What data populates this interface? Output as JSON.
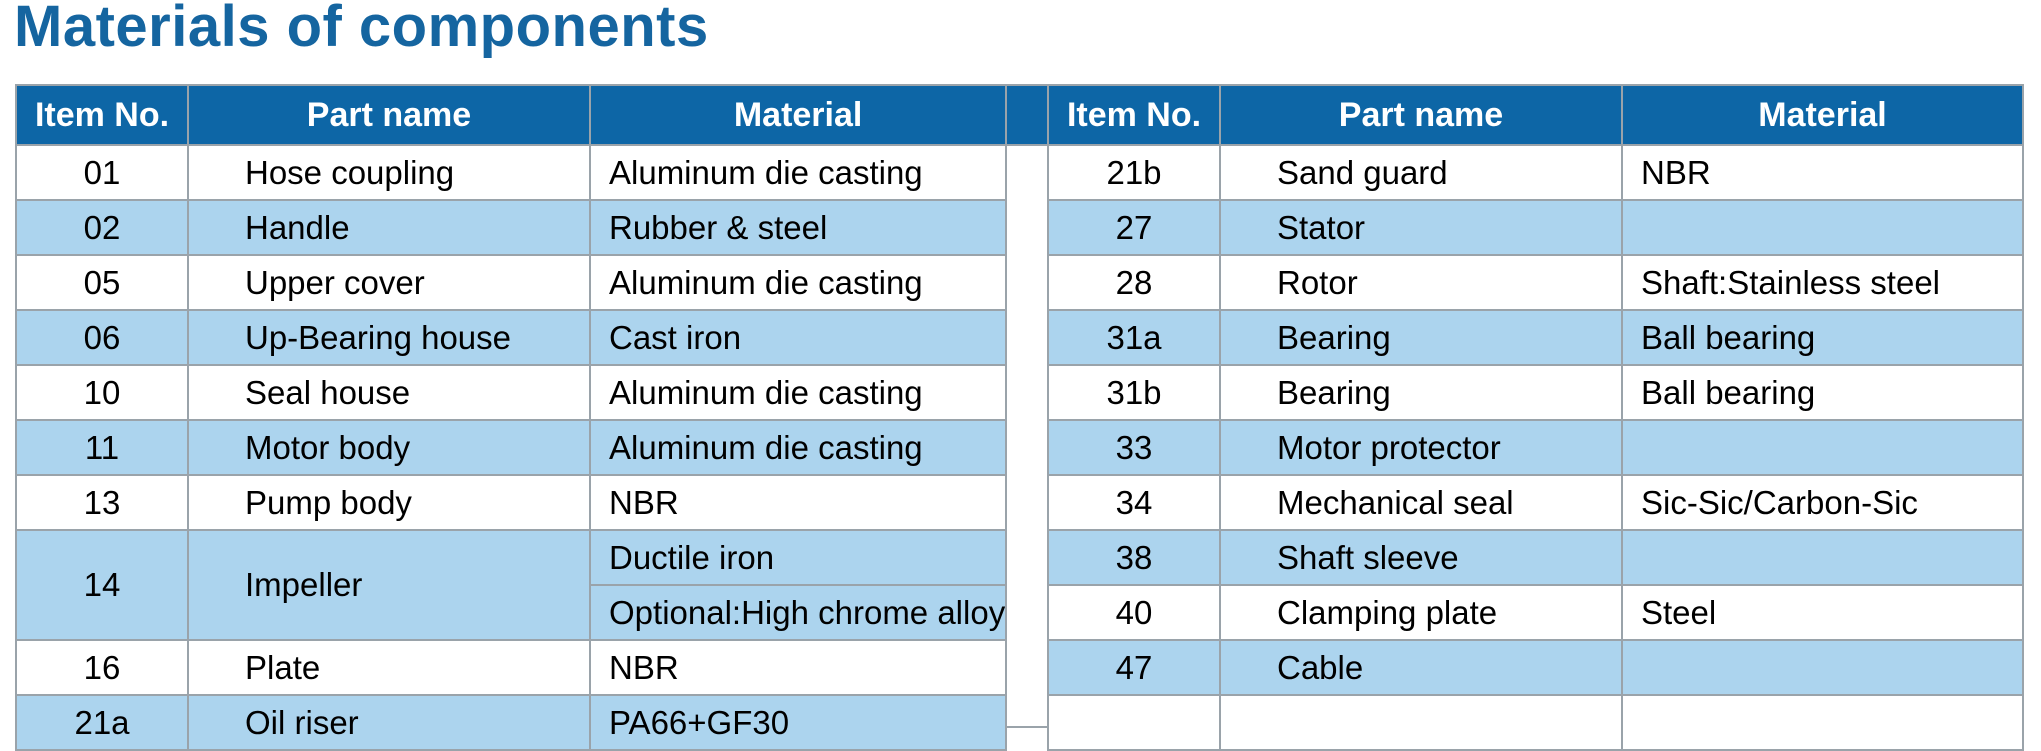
{
  "title": "Materials of components",
  "headers": [
    "Item No.",
    "Part name",
    "Material"
  ],
  "left_rows": [
    {
      "no": "01",
      "name": "Hose coupling",
      "material": "Aluminum die casting"
    },
    {
      "no": "02",
      "name": "Handle",
      "material": "Rubber & steel"
    },
    {
      "no": "05",
      "name": "Upper cover",
      "material": "Aluminum die casting"
    },
    {
      "no": "06",
      "name": "Up-Bearing house",
      "material": "Cast iron"
    },
    {
      "no": "10",
      "name": "Seal house",
      "material": "Aluminum die casting"
    },
    {
      "no": "11",
      "name": "Motor body",
      "material": "Aluminum die casting"
    },
    {
      "no": "13",
      "name": "Pump body",
      "material": "NBR"
    },
    {
      "no": "14",
      "name": "Impeller",
      "material": "Ductile iron",
      "material2": "Optional:High chrome alloy"
    },
    {
      "no": "16",
      "name": "Plate",
      "material": "NBR"
    },
    {
      "no": "21a",
      "name": "Oil riser",
      "material": "PA66+GF30"
    }
  ],
  "right_rows": [
    {
      "no": "21b",
      "name": "Sand guard",
      "material": "NBR"
    },
    {
      "no": "27",
      "name": "Stator",
      "material": ""
    },
    {
      "no": "28",
      "name": "Rotor",
      "material": "Shaft:Stainless steel"
    },
    {
      "no": "31a",
      "name": "Bearing",
      "material": "Ball bearing"
    },
    {
      "no": "31b",
      "name": "Bearing",
      "material": "Ball bearing"
    },
    {
      "no": "33",
      "name": "Motor protector",
      "material": ""
    },
    {
      "no": "34",
      "name": "Mechanical seal",
      "material": "Sic-Sic/Carbon-Sic"
    },
    {
      "no": "38",
      "name": "Shaft sleeve",
      "material": ""
    },
    {
      "no": "40",
      "name": "Clamping plate",
      "material": "Steel"
    },
    {
      "no": "47",
      "name": "Cable",
      "material": ""
    },
    {
      "no": "",
      "name": "",
      "material": ""
    }
  ]
}
